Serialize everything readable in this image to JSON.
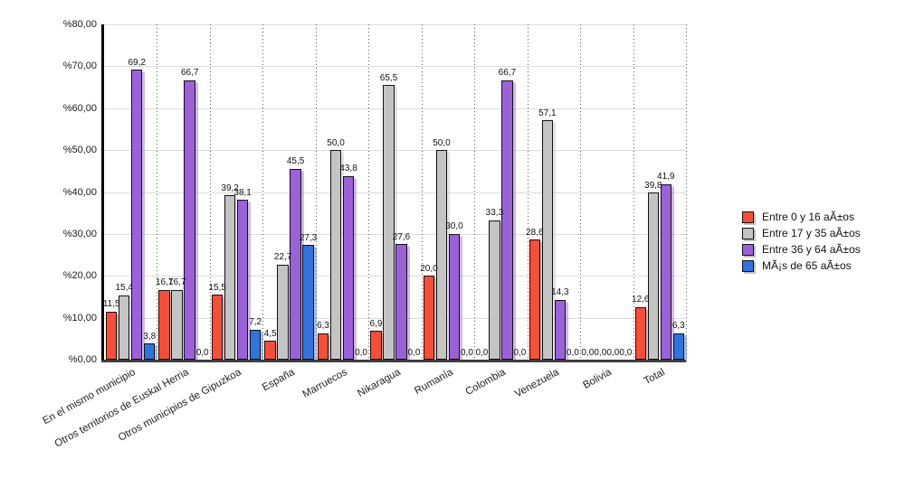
{
  "chart_data": {
    "type": "bar",
    "title": "",
    "xlabel": "",
    "ylabel": "",
    "ylim": [
      0,
      80
    ],
    "y_tick_step": 10,
    "y_tick_labels": [
      "%0,00",
      "%10,00",
      "%20,00",
      "%30,00",
      "%40,00",
      "%50,00",
      "%60,00",
      "%70,00",
      "%80,00"
    ],
    "grid": {
      "horizontal": "solid-light-gray",
      "vertical": "dotted-dark-gray"
    },
    "legend_position": "right",
    "value_label_format": "decimal-comma-one-digit",
    "categories": [
      "En el mismo municipio",
      "Otros territorios de Euskal Herria",
      "Otros municipios de Gipuzkoa",
      "España",
      "Marruecos",
      "Nikaragua",
      "Rumanía",
      "Colombia",
      "Venezuela",
      "Bolivia",
      "Total"
    ],
    "series": [
      {
        "name": "Entre 0 y 16 aÃ±os",
        "color": "#f2503a",
        "values": [
          11.5,
          16.7,
          15.5,
          4.5,
          6.3,
          6.9,
          20.0,
          0.0,
          28.6,
          0.0,
          12.6
        ]
      },
      {
        "name": "Entre 17 y 35 aÃ±os",
        "color": "#c4c4c4",
        "values": [
          15.4,
          16.7,
          39.2,
          22.7,
          50.0,
          65.5,
          50.0,
          33.3,
          57.1,
          0.0,
          39.8
        ]
      },
      {
        "name": "Entre 36 y 64 aÃ±os",
        "color": "#9a62d6",
        "values": [
          69.2,
          66.7,
          38.1,
          45.5,
          43.8,
          27.6,
          30.0,
          66.7,
          14.3,
          0.0,
          41.9
        ]
      },
      {
        "name": "MÃ¡s de 65 aÃ±os",
        "color": "#3273dc",
        "values": [
          3.8,
          0.0,
          7.2,
          27.3,
          0.0,
          0.0,
          0.0,
          0.0,
          0.0,
          0.0,
          6.3
        ]
      }
    ]
  }
}
